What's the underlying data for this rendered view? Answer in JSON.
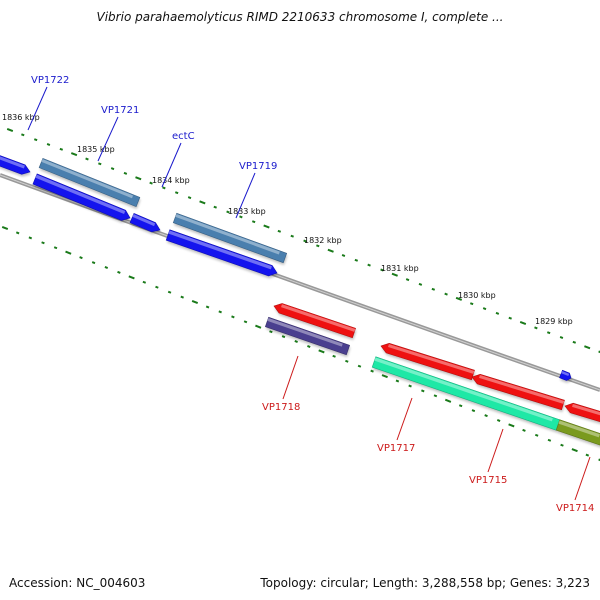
{
  "title": "Vibrio parahaemolyticus RIMD 2210633 chromosome I, complete ...",
  "footer": {
    "accession": "Accession: NC_004603",
    "summary": "Topology: circular; Length: 3,288,558 bp; Genes: 3,223"
  },
  "colors": {
    "backbone": "#888888",
    "tick": "#1a7a1a",
    "forward_label": "#1a1acc",
    "reverse_label": "#cc1a1a",
    "blue": "#1414ee",
    "steel": "#4a7fae",
    "red": "#ee1111",
    "green": "#1ee8a6",
    "purple": "#4a3f8f",
    "olive": "#7a9a1e"
  },
  "scale_labels": [
    "1836 kbp",
    "1835 kbp",
    "1834 kbp",
    "1833 kbp",
    "1832 kbp",
    "1831 kbp",
    "1830 kbp",
    "1829 kbp"
  ],
  "forward_genes": [
    "VP1722",
    "VP1721",
    "ectC",
    "VP1719"
  ],
  "reverse_genes": [
    "VP1718",
    "VP1717",
    "VP1715",
    "VP1714"
  ]
}
